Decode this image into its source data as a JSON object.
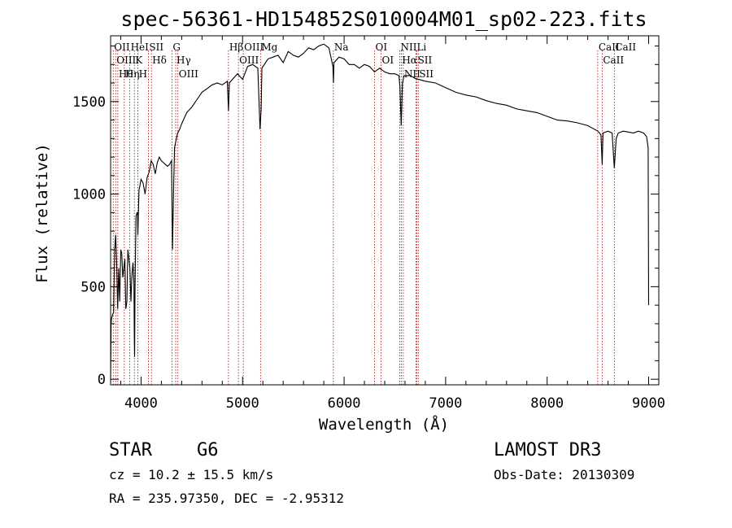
{
  "chart_data": {
    "type": "line",
    "title": "spec-56361-HD154852S010004M01_sp02-223.fits",
    "xlabel": "Wavelength (Å)",
    "ylabel": "Flux (relative)",
    "xlim": [
      3700,
      9100
    ],
    "ylim": [
      -30,
      1855
    ],
    "xticks": [
      4000,
      5000,
      6000,
      7000,
      8000,
      9000
    ],
    "yticks": [
      0,
      500,
      1000,
      1500
    ],
    "series": [
      {
        "name": "spectrum",
        "x": [
          3700,
          3705,
          3710,
          3720,
          3730,
          3740,
          3750,
          3760,
          3770,
          3780,
          3790,
          3800,
          3810,
          3820,
          3830,
          3840,
          3850,
          3860,
          3870,
          3880,
          3890,
          3900,
          3910,
          3920,
          3930,
          3933,
          3936,
          3940,
          3950,
          3960,
          3965,
          3968,
          3972,
          3980,
          3990,
          4000,
          4020,
          4040,
          4060,
          4080,
          4100,
          4120,
          4140,
          4160,
          4180,
          4200,
          4220,
          4240,
          4260,
          4280,
          4300,
          4310,
          4320,
          4330,
          4340,
          4360,
          4380,
          4400,
          4450,
          4500,
          4550,
          4600,
          4650,
          4700,
          4750,
          4800,
          4850,
          4861,
          4870,
          4900,
          4950,
          5000,
          5050,
          5100,
          5150,
          5172,
          5183,
          5190,
          5250,
          5300,
          5350,
          5400,
          5450,
          5500,
          5550,
          5600,
          5650,
          5700,
          5750,
          5800,
          5850,
          5890,
          5895,
          5900,
          5950,
          6000,
          6050,
          6100,
          6150,
          6200,
          6250,
          6300,
          6350,
          6400,
          6450,
          6500,
          6540,
          6550,
          6563,
          6575,
          6590,
          6650,
          6700,
          6800,
          6900,
          7000,
          7100,
          7200,
          7300,
          7400,
          7500,
          7600,
          7700,
          7800,
          7900,
          8000,
          8100,
          8200,
          8300,
          8400,
          8450,
          8500,
          8530,
          8542,
          8550,
          8600,
          8640,
          8662,
          8680,
          8700,
          8750,
          8800,
          8850,
          8900,
          8950,
          8980,
          8995,
          9000
        ],
        "values": [
          0,
          300,
          330,
          350,
          360,
          700,
          780,
          620,
          380,
          600,
          420,
          700,
          680,
          550,
          600,
          650,
          380,
          420,
          700,
          650,
          600,
          420,
          560,
          630,
          520,
          250,
          120,
          480,
          880,
          900,
          900,
          780,
          850,
          1020,
          1050,
          1080,
          1060,
          1000,
          1090,
          1120,
          1180,
          1160,
          1110,
          1170,
          1200,
          1180,
          1170,
          1160,
          1150,
          1160,
          1180,
          700,
          1020,
          1250,
          1280,
          1330,
          1350,
          1380,
          1440,
          1470,
          1510,
          1550,
          1570,
          1590,
          1600,
          1590,
          1610,
          1450,
          1600,
          1620,
          1650,
          1620,
          1690,
          1700,
          1680,
          1350,
          1460,
          1680,
          1730,
          1740,
          1750,
          1710,
          1770,
          1750,
          1740,
          1760,
          1790,
          1780,
          1800,
          1810,
          1790,
          1690,
          1600,
          1710,
          1740,
          1730,
          1700,
          1700,
          1680,
          1700,
          1690,
          1660,
          1680,
          1660,
          1650,
          1650,
          1640,
          1580,
          1370,
          1600,
          1640,
          1640,
          1625,
          1610,
          1600,
          1575,
          1550,
          1535,
          1525,
          1505,
          1490,
          1480,
          1460,
          1450,
          1440,
          1420,
          1400,
          1395,
          1385,
          1370,
          1355,
          1340,
          1320,
          1160,
          1330,
          1340,
          1330,
          1140,
          1300,
          1330,
          1340,
          1335,
          1330,
          1340,
          1330,
          1310,
          1250,
          400
        ]
      }
    ],
    "lines": [
      {
        "wave": 3726,
        "label": "OII"
      },
      {
        "wave": 3750,
        "label": "OIII"
      },
      {
        "wave": 3771,
        "label": "Hθ"
      },
      {
        "wave": 3835,
        "label": "Hη"
      },
      {
        "wave": 3889,
        "label": "HeI"
      },
      {
        "wave": 3934,
        "label": "K"
      },
      {
        "wave": 3969,
        "label": "H"
      },
      {
        "wave": 4072,
        "label": "SII"
      },
      {
        "wave": 4102,
        "label": "Hδ"
      },
      {
        "wave": 4304,
        "label": "G"
      },
      {
        "wave": 4341,
        "label": "Hγ"
      },
      {
        "wave": 4363,
        "label": "OIII"
      },
      {
        "wave": 4861,
        "label": "Hβ"
      },
      {
        "wave": 4959,
        "label": "OIII"
      },
      {
        "wave": 5007,
        "label": "OIII"
      },
      {
        "wave": 5177,
        "label": "Mg"
      },
      {
        "wave": 5894,
        "label": "Na"
      },
      {
        "wave": 6300,
        "label": "OI"
      },
      {
        "wave": 6364,
        "label": "OI"
      },
      {
        "wave": 6548,
        "label": "NII"
      },
      {
        "wave": 6563,
        "label": "Hα"
      },
      {
        "wave": 6583,
        "label": "NII"
      },
      {
        "wave": 6708,
        "label": "Li"
      },
      {
        "wave": 6717,
        "label": "SII"
      },
      {
        "wave": 6731,
        "label": "SII"
      },
      {
        "wave": 8498,
        "label": "CaII"
      },
      {
        "wave": 8542,
        "label": "CaII"
      },
      {
        "wave": 8662,
        "label": "CaII"
      }
    ]
  },
  "info": {
    "object_class": "STAR",
    "subclass": "G6",
    "survey": "LAMOST DR3",
    "cz": "cz = 10.2 ± 15.5 km/s",
    "obs_date": "Obs-Date: 20130309",
    "radec": "RA = 235.97350, DEC =  -2.95312"
  },
  "colors": {
    "spectrum": "#000000",
    "line_markers": "#b00000",
    "background": "#ffffff"
  }
}
